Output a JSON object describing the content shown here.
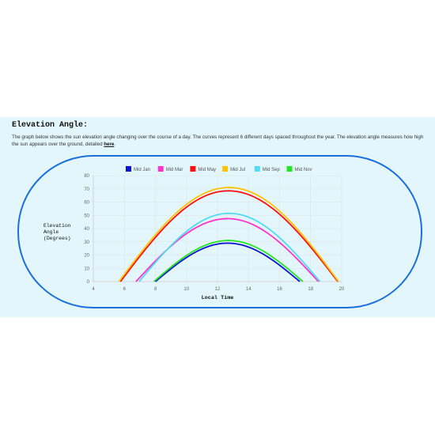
{
  "section": {
    "title": "Elevation Angle:",
    "description": "The graph below shows the sun elevation angle changing over the course of a day. The curves represent 6 different days spaced throughout the year. The elevation angle measures how high the sun appears over the ground, detailed ",
    "link_text": "here",
    "description_end": "."
  },
  "chart_data": {
    "type": "line",
    "xlabel": "Local Time",
    "ylabel_lines": [
      "Elevation",
      "Angle",
      "(Degrees)"
    ],
    "xlim": [
      4,
      20
    ],
    "ylim": [
      0,
      80
    ],
    "x_ticks": [
      4,
      6,
      8,
      10,
      12,
      14,
      16,
      18,
      20
    ],
    "y_ticks": [
      0,
      10,
      20,
      30,
      40,
      50,
      60,
      70,
      80
    ],
    "grid": true,
    "legend_position": "top",
    "series": [
      {
        "name": "Mid Jan",
        "color": "#0a14d6",
        "sunrise": 8.0,
        "sunset": 17.3,
        "peak_time": 12.65,
        "peak": 29
      },
      {
        "name": "Mid Mar",
        "color": "#ff33cc",
        "sunrise": 6.75,
        "sunset": 18.5,
        "peak_time": 12.65,
        "peak": 47.5
      },
      {
        "name": "Mid May",
        "color": "#ff1010",
        "sunrise": 5.75,
        "sunset": 19.75,
        "peak_time": 12.7,
        "peak": 68.5
      },
      {
        "name": "Mid Jul",
        "color": "#ffc400",
        "sunrise": 5.65,
        "sunset": 19.8,
        "peak_time": 12.75,
        "peak": 71
      },
      {
        "name": "Mid Sep",
        "color": "#4fdcf2",
        "sunrise": 6.95,
        "sunset": 18.6,
        "peak_time": 12.75,
        "peak": 51.5
      },
      {
        "name": "Mid Nov",
        "color": "#22e622",
        "sunrise": 7.9,
        "sunset": 17.5,
        "peak_time": 12.7,
        "peak": 31
      }
    ]
  }
}
